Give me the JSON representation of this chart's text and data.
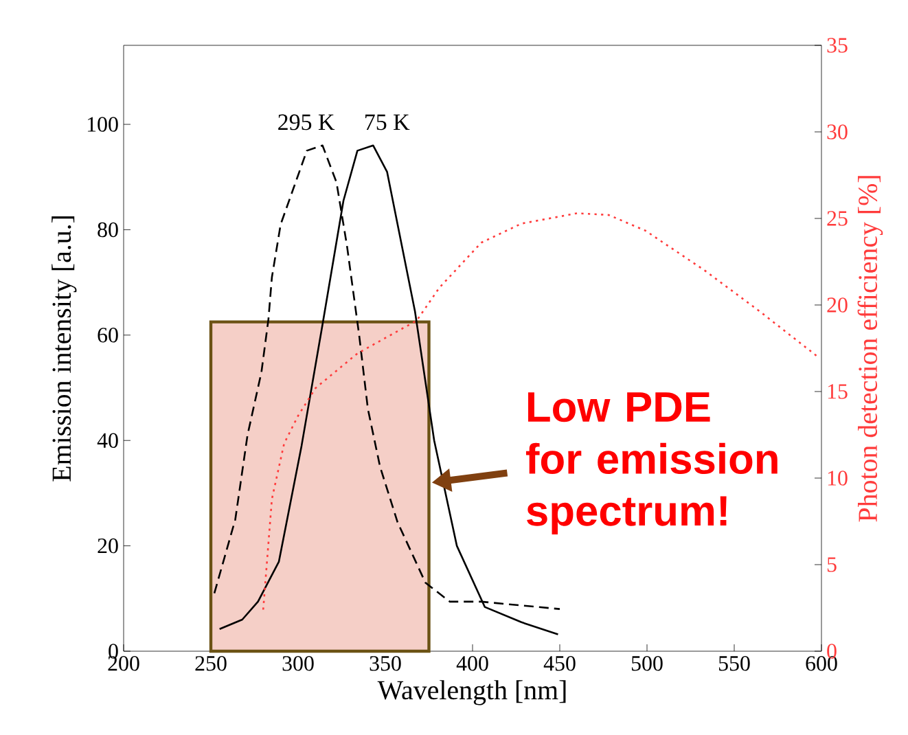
{
  "chart_data": {
    "type": "line",
    "xlabel": "Wavelength [nm]",
    "ylabel": "Emission intensity [a.u.]",
    "y2label": "Photon detection efficiency [%]",
    "xlim": [
      200,
      600
    ],
    "xticks": [
      200,
      250,
      300,
      350,
      400,
      450,
      500,
      550,
      600
    ],
    "ylim": [
      0,
      115
    ],
    "yticks": [
      0,
      20,
      40,
      60,
      80,
      100
    ],
    "y2lim": [
      0,
      35
    ],
    "y2ticks": [
      0,
      5,
      10,
      15,
      20,
      25,
      30,
      35
    ],
    "grid": false,
    "marker": "none",
    "series": [
      {
        "type": "area",
        "color": "#f5cfc7",
        "x": [
          250,
          375
        ],
        "values": [
          62.5,
          62.5
        ]
      },
      {
        "name": "295 K",
        "color": "#000000",
        "line_style": "dashed",
        "x": [
          252,
          264,
          271,
          279,
          283,
          285,
          290,
          305,
          314,
          322,
          328,
          335,
          340,
          347,
          357,
          373,
          387,
          405,
          450
        ],
        "values": [
          11,
          25,
          41,
          53,
          63,
          71,
          81,
          95,
          96,
          89,
          77,
          60,
          46,
          35,
          24.5,
          13,
          9.4,
          9.4,
          8
        ]
      },
      {
        "name": "75 K",
        "color": "#000000",
        "line_style": "solid",
        "x": [
          255,
          268,
          277,
          289,
          302,
          314,
          326,
          334,
          343,
          351,
          367,
          378,
          391,
          407,
          428,
          449
        ],
        "values": [
          4.2,
          6,
          9.4,
          17,
          39,
          62,
          85.5,
          95,
          96,
          91,
          64.5,
          40,
          20,
          8.4,
          5.5,
          3.2
        ]
      },
      {
        "axis": "y2",
        "color": "#ff3b3b",
        "line_style": "dotted",
        "x": [
          280,
          285,
          292,
          300,
          310,
          334,
          368,
          381,
          405,
          428,
          460,
          478,
          499,
          533,
          565,
          598
        ],
        "values": [
          2.4,
          8.8,
          12,
          13.6,
          15.2,
          17.2,
          19.1,
          21,
          23.6,
          24.7,
          25.3,
          25.2,
          24.3,
          22,
          19.6,
          17
        ]
      }
    ],
    "annotations": [
      {
        "text": "Low PDE for emission spectrum!",
        "x": 375,
        "y": 32
      }
    ]
  }
}
